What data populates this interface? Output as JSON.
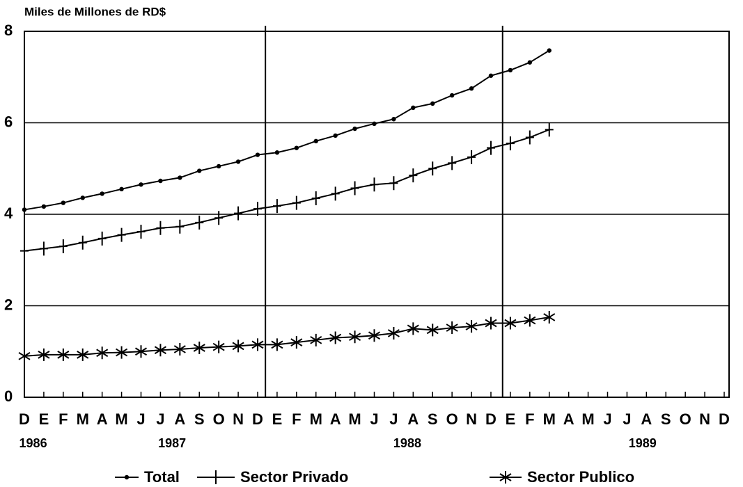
{
  "chart_data": {
    "type": "line",
    "y_axis_label": "Miles de Millones de RD$",
    "categories": [
      "D",
      "E",
      "F",
      "M",
      "A",
      "M",
      "J",
      "J",
      "A",
      "S",
      "O",
      "N",
      "D",
      "E",
      "F",
      "M",
      "A",
      "M",
      "J",
      "J",
      "A",
      "S",
      "O",
      "N",
      "D",
      "E",
      "F",
      "M",
      "A",
      "M",
      "J",
      "J",
      "A",
      "S",
      "O",
      "N",
      "D"
    ],
    "year_labels": [
      "1986",
      "1987",
      "1988",
      "1989"
    ],
    "ylim": [
      0,
      8
    ],
    "yticks": [
      0,
      2,
      4,
      6,
      8
    ],
    "grid": true,
    "series": [
      {
        "name": "Total",
        "color": "#000000",
        "marker": "dot",
        "values": [
          4.1,
          4.17,
          4.25,
          4.36,
          4.45,
          4.55,
          4.65,
          4.73,
          4.8,
          4.95,
          5.05,
          5.15,
          5.3,
          5.35,
          5.45,
          5.6,
          5.72,
          5.87,
          5.98,
          6.08,
          6.33,
          6.42,
          6.6,
          6.75,
          7.03,
          7.15,
          7.32,
          7.58,
          null,
          null,
          null,
          null,
          null,
          null,
          null,
          null,
          null
        ]
      },
      {
        "name": "Sector Privado",
        "color": "#000000",
        "marker": "plus",
        "values": [
          3.2,
          3.25,
          3.3,
          3.38,
          3.47,
          3.55,
          3.62,
          3.7,
          3.73,
          3.82,
          3.92,
          4.02,
          4.12,
          4.18,
          4.25,
          4.35,
          4.45,
          4.57,
          4.65,
          4.68,
          4.85,
          5.0,
          5.12,
          5.25,
          5.45,
          5.55,
          5.68,
          5.85,
          null,
          null,
          null,
          null,
          null,
          null,
          null,
          null,
          null
        ]
      },
      {
        "name": "Sector Publico",
        "color": "#000000",
        "marker": "star",
        "values": [
          0.9,
          0.93,
          0.93,
          0.93,
          0.97,
          0.98,
          1.0,
          1.03,
          1.05,
          1.08,
          1.1,
          1.12,
          1.15,
          1.15,
          1.2,
          1.25,
          1.3,
          1.32,
          1.35,
          1.4,
          1.5,
          1.47,
          1.52,
          1.55,
          1.62,
          1.62,
          1.68,
          1.75,
          null,
          null,
          null,
          null,
          null,
          null,
          null,
          null,
          null
        ]
      }
    ]
  }
}
